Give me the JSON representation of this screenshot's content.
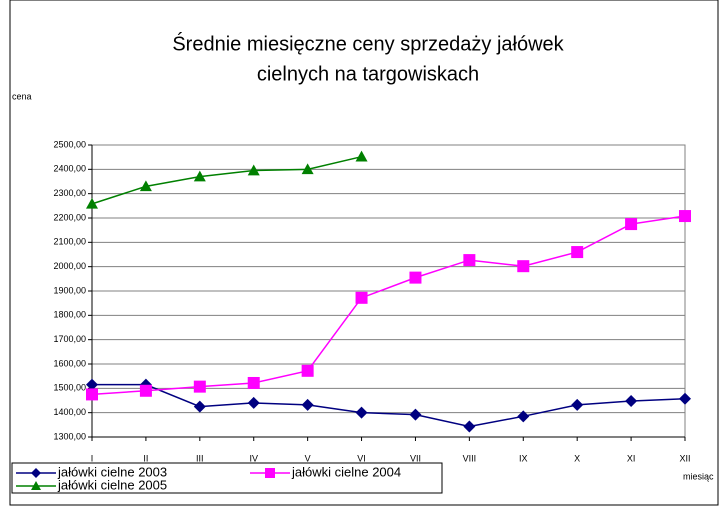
{
  "chart_data": {
    "type": "line",
    "title": [
      "Średnie miesięczne ceny sprzedaży jałówek",
      "cielnych na targowiskach"
    ],
    "y_label": "cena",
    "x_label": "miesiąc",
    "categories": [
      "I",
      "II",
      "III",
      "IV",
      "V",
      "VI",
      "VII",
      "VIII",
      "IX",
      "X",
      "XI",
      "XII"
    ],
    "series": [
      {
        "name": "jałówki cielne 2003",
        "color": "#000080",
        "marker": "diamond",
        "values": [
          1515,
          1515,
          1425,
          1440,
          1432,
          1400,
          1392,
          1343,
          1385,
          1432,
          1448,
          1457
        ]
      },
      {
        "name": "jałówki cielne 2004",
        "color": "#ff00ff",
        "marker": "square",
        "values": [
          1475,
          1490,
          1507,
          1522,
          1572,
          1872,
          1955,
          2027,
          2002,
          2060,
          2175,
          2208
        ]
      },
      {
        "name": "jałówki cielne 2005",
        "color": "#008000",
        "marker": "triangle",
        "values": [
          2258,
          2330,
          2370,
          2395,
          2400,
          2452,
          null,
          null,
          null,
          null,
          null,
          null
        ]
      }
    ],
    "ylim": [
      1300,
      2500
    ],
    "yticks": [
      {
        "value": 1300,
        "label": "1300,00"
      },
      {
        "value": 1400,
        "label": "1400,00"
      },
      {
        "value": 1500,
        "label": "1500,00"
      },
      {
        "value": 1600,
        "label": "1600,00"
      },
      {
        "value": 1700,
        "label": "1700,00"
      },
      {
        "value": 1800,
        "label": "1800,00"
      },
      {
        "value": 1900,
        "label": "1900,00"
      },
      {
        "value": 2000,
        "label": "2000,00"
      },
      {
        "value": 2100,
        "label": "2100,00"
      },
      {
        "value": 2200,
        "label": "2200,00"
      },
      {
        "value": 2300,
        "label": "2300,00"
      },
      {
        "value": 2400,
        "label": "2400,00"
      },
      {
        "value": 2500,
        "label": "2500,00"
      }
    ],
    "grid": true
  }
}
